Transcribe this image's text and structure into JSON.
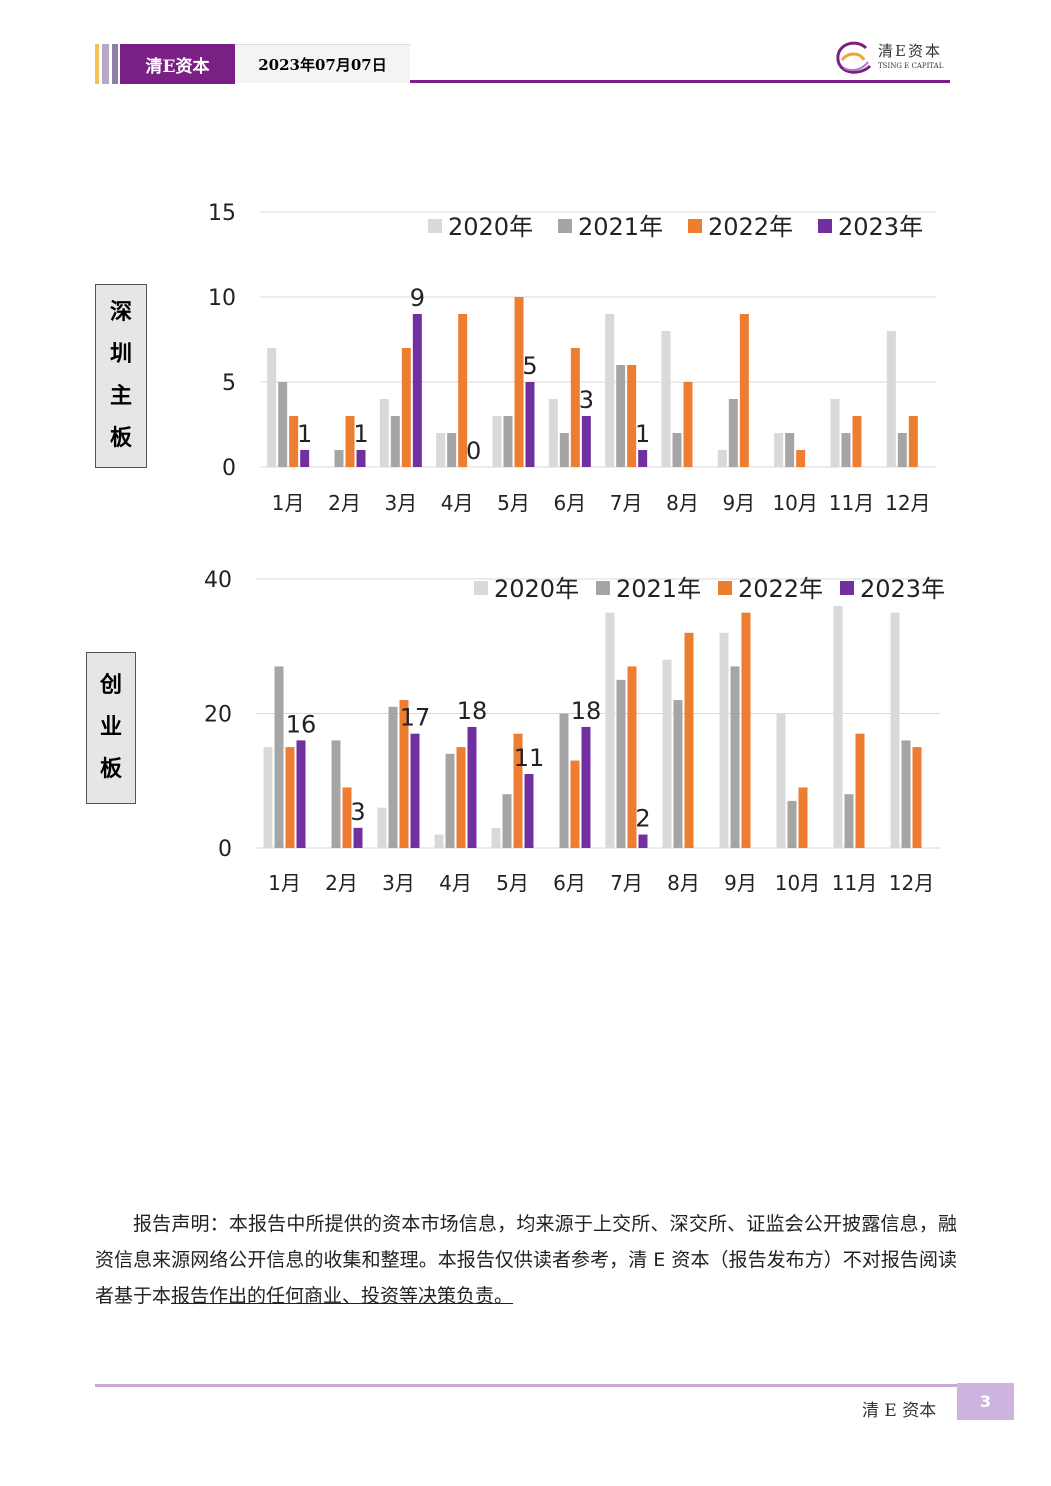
{
  "header": {
    "brand": "清E资本",
    "date": "2023年07月07日",
    "logo_cn": "清E资本",
    "logo_en": "TSING E CAPITAL"
  },
  "colors": {
    "y2020": "#d9d9d9",
    "y2021": "#a5a5a5",
    "y2022": "#ed7d31",
    "y2023": "#7030a0",
    "accent": "#7a1f83"
  },
  "chart_data": [
    {
      "type": "bar",
      "side_label": "深圳主板",
      "categories": [
        "1月",
        "2月",
        "3月",
        "4月",
        "5月",
        "6月",
        "7月",
        "8月",
        "9月",
        "10月",
        "11月",
        "12月"
      ],
      "ylim": [
        0,
        15
      ],
      "yticks": [
        "0",
        "5",
        "10",
        "15"
      ],
      "grid": true,
      "legend": "top-right",
      "series": [
        {
          "name": "2020年",
          "values": [
            7,
            0,
            4,
            2,
            3,
            4,
            9,
            8,
            1,
            2,
            4,
            8
          ]
        },
        {
          "name": "2021年",
          "values": [
            5,
            1,
            3,
            2,
            3,
            2,
            6,
            2,
            4,
            2,
            2,
            2
          ]
        },
        {
          "name": "2022年",
          "values": [
            3,
            3,
            7,
            9,
            10,
            7,
            6,
            5,
            9,
            1,
            3,
            3
          ]
        },
        {
          "name": "2023年",
          "values": [
            1,
            1,
            9,
            0,
            5,
            3,
            1,
            null,
            null,
            null,
            null,
            null
          ]
        }
      ],
      "data_labels": [
        "1",
        "1",
        "9",
        "0",
        "5",
        "3",
        "1"
      ]
    },
    {
      "type": "bar",
      "side_label": "创业板",
      "categories": [
        "1月",
        "2月",
        "3月",
        "4月",
        "5月",
        "6月",
        "7月",
        "8月",
        "9月",
        "10月",
        "11月",
        "12月"
      ],
      "ylim": [
        0,
        40
      ],
      "yticks": [
        "0",
        "20",
        "40"
      ],
      "grid": true,
      "legend": "top-right",
      "series": [
        {
          "name": "2020年",
          "values": [
            15,
            0,
            6,
            2,
            3,
            0,
            35,
            28,
            32,
            20,
            36,
            35
          ]
        },
        {
          "name": "2021年",
          "values": [
            27,
            16,
            21,
            14,
            8,
            20,
            25,
            22,
            27,
            7,
            8,
            16
          ]
        },
        {
          "name": "2022年",
          "values": [
            15,
            9,
            22,
            15,
            17,
            13,
            27,
            32,
            35,
            9,
            17,
            15
          ]
        },
        {
          "name": "2023年",
          "values": [
            16,
            3,
            17,
            18,
            11,
            18,
            2,
            null,
            null,
            null,
            null,
            null
          ]
        }
      ],
      "data_labels": [
        "16",
        "3",
        "17",
        "18",
        "11",
        "18",
        "2"
      ]
    }
  ],
  "disclaimer": {
    "part1": "报告声明：本报告中所提供的资本市场信息，均来源于上交所、深交所、证监会公开披露信息，融资信息来源网络公开信息的收集和整理。本报告仅供读者参考，清 E 资本（报告发布方）不对报告阅读者基于本",
    "part2": "报告作出的任何商业、投资等决策负责。"
  },
  "footer": {
    "name": "清 E 资本",
    "page": "3"
  }
}
